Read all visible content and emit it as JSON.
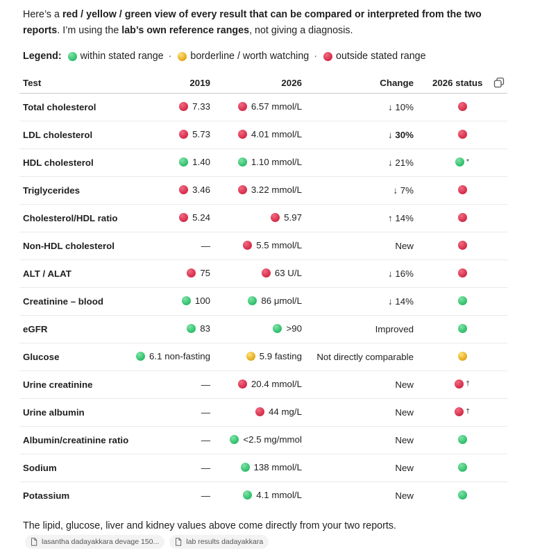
{
  "intro": {
    "p1": "Here’s a ",
    "bold1": "red / yellow / green view of every result that can be compared or interpreted from the two reports",
    "p2": ". I’m using the ",
    "bold2": "lab’s own reference ranges",
    "p3": ", not giving a diagnosis."
  },
  "legend": {
    "label": "Legend:",
    "items": [
      {
        "color": "green",
        "text": "within stated range"
      },
      {
        "color": "yellow",
        "text": "borderline / worth watching"
      },
      {
        "color": "red",
        "text": "outside stated range"
      }
    ],
    "separator": "·"
  },
  "table": {
    "headers": {
      "test": "Test",
      "y2019": "2019",
      "y2026": "2026",
      "change": "Change",
      "status": "2026 status"
    },
    "rows": [
      {
        "test": "Total cholesterol",
        "v2019": "7.33",
        "c2019": "red",
        "v2026": "6.57 mmol/L",
        "c2026": "red",
        "change": "↓ 10%",
        "change_bold": false,
        "status": "red",
        "mark": ""
      },
      {
        "test": "LDL cholesterol",
        "v2019": "5.73",
        "c2019": "red",
        "v2026": "4.01 mmol/L",
        "c2026": "red",
        "change": "↓ 30%",
        "change_bold": true,
        "status": "red",
        "mark": ""
      },
      {
        "test": "HDL cholesterol",
        "v2019": "1.40",
        "c2019": "green",
        "v2026": "1.10 mmol/L",
        "c2026": "green",
        "change": "↓ 21%",
        "change_bold": false,
        "status": "green",
        "mark": "*"
      },
      {
        "test": "Triglycerides",
        "v2019": "3.46",
        "c2019": "red",
        "v2026": "3.22 mmol/L",
        "c2026": "red",
        "change": "↓ 7%",
        "change_bold": false,
        "status": "red",
        "mark": ""
      },
      {
        "test": "Cholesterol/HDL ratio",
        "v2019": "5.24",
        "c2019": "red",
        "v2026": "5.97",
        "c2026": "red",
        "change": "↑ 14%",
        "change_bold": false,
        "status": "red",
        "mark": ""
      },
      {
        "test": "Non-HDL cholesterol",
        "v2019": "—",
        "c2019": "",
        "v2026": "5.5 mmol/L",
        "c2026": "red",
        "change": "New",
        "change_bold": false,
        "status": "red",
        "mark": ""
      },
      {
        "test": "ALT / ALAT",
        "v2019": "75",
        "c2019": "red",
        "v2026": "63 U/L",
        "c2026": "red",
        "change": "↓ 16%",
        "change_bold": false,
        "status": "red",
        "mark": ""
      },
      {
        "test": "Creatinine – blood",
        "v2019": "100",
        "c2019": "green",
        "v2026": "86 μmol/L",
        "c2026": "green",
        "change": "↓ 14%",
        "change_bold": false,
        "status": "green",
        "mark": ""
      },
      {
        "test": "eGFR",
        "v2019": "83",
        "c2019": "green",
        "v2026": ">90",
        "c2026": "green",
        "change": "Improved",
        "change_bold": false,
        "status": "green",
        "mark": ""
      },
      {
        "test": "Glucose",
        "v2019": "6.1 non-fasting",
        "c2019": "green",
        "v2026": "5.9 fasting",
        "c2026": "yellow",
        "change": "Not directly comparable",
        "change_bold": false,
        "status": "yellow",
        "mark": ""
      },
      {
        "test": "Urine creatinine",
        "v2019": "—",
        "c2019": "",
        "v2026": "20.4 mmol/L",
        "c2026": "red",
        "change": "New",
        "change_bold": false,
        "status": "red",
        "mark": "†"
      },
      {
        "test": "Urine albumin",
        "v2019": "—",
        "c2019": "",
        "v2026": "44 mg/L",
        "c2026": "red",
        "change": "New",
        "change_bold": false,
        "status": "red",
        "mark": "†"
      },
      {
        "test": "Albumin/creatinine ratio",
        "v2019": "—",
        "c2019": "",
        "v2026": "<2.5 mg/mmol",
        "c2026": "green",
        "change": "New",
        "change_bold": false,
        "status": "green",
        "mark": ""
      },
      {
        "test": "Sodium",
        "v2019": "—",
        "c2019": "",
        "v2026": "138 mmol/L",
        "c2026": "green",
        "change": "New",
        "change_bold": false,
        "status": "green",
        "mark": ""
      },
      {
        "test": "Potassium",
        "v2019": "—",
        "c2019": "",
        "v2026": "4.1 mmol/L",
        "c2026": "green",
        "change": "New",
        "change_bold": false,
        "status": "green",
        "mark": ""
      }
    ]
  },
  "footer": {
    "text": "The lipid, glucose, liver and kidney values above come directly from your two reports.",
    "chips": [
      {
        "label": "lasantha dadayakkara devage 150...",
        "icon": "file-icon"
      },
      {
        "label": "lab results dadayakkara",
        "icon": "file-icon"
      }
    ]
  },
  "icons": {
    "copy": "copy-icon"
  },
  "colors": {
    "red": "#d42a48",
    "green": "#2dbd6a",
    "yellow": "#e2a717"
  }
}
